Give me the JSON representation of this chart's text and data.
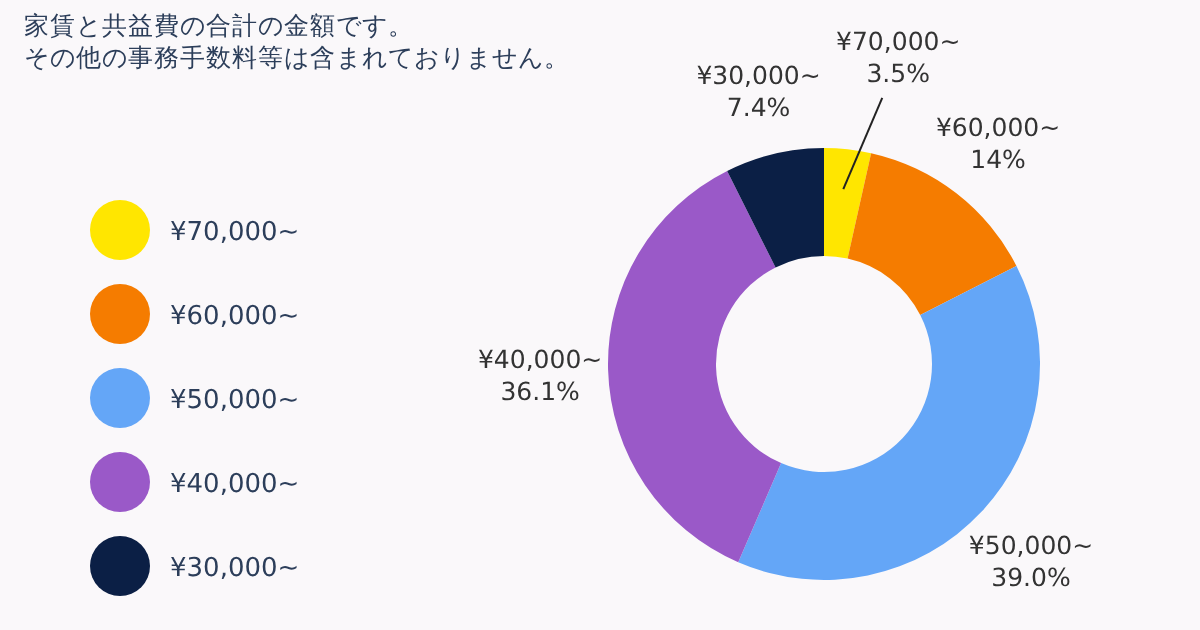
{
  "chart_data": {
    "type": "donut",
    "title": "家賃と共益費の合計の金額です。",
    "subtitle": "その他の事務手数料等は含まれておりません。",
    "categories": [
      "¥70,000~",
      "¥60,000~",
      "¥50,000~",
      "¥40,000~",
      "¥30,000~"
    ],
    "values": [
      3.5,
      14,
      39.0,
      36.1,
      7.4
    ],
    "value_labels": [
      "3.5%",
      "14%",
      "39.0%",
      "36.1%",
      "7.4%"
    ],
    "colors": [
      "#ffe600",
      "#f57c00",
      "#64a6f7",
      "#9a59c8",
      "#0b1f45"
    ],
    "legend": "left"
  }
}
